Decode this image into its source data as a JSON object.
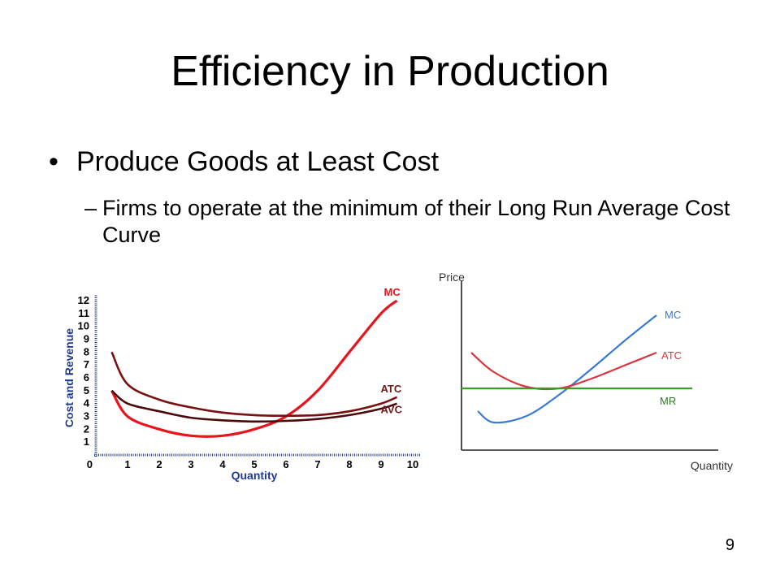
{
  "slide": {
    "title": "Efficiency in Production",
    "bullet": "Produce Goods at Least Cost",
    "bullet_marker": "•",
    "sub_dash": "–",
    "sub_bullet": "Firms to operate at the minimum of their Long Run Average Cost Curve",
    "slide_number": "9"
  },
  "chart_data": [
    {
      "type": "line",
      "title": "",
      "xlabel": "Quantity",
      "ylabel": "Cost and Revenue",
      "xlim": [
        0,
        10
      ],
      "ylim": [
        0,
        12
      ],
      "x_ticks": [
        "0",
        "1",
        "2",
        "3",
        "4",
        "5",
        "6",
        "7",
        "8",
        "9",
        "10"
      ],
      "y_ticks": [
        "1",
        "2",
        "3",
        "4",
        "5",
        "6",
        "7",
        "8",
        "9",
        "10",
        "11",
        "12"
      ],
      "series": [
        {
          "name": "MC",
          "color": "#e8141c",
          "x": [
            0.5,
            1,
            2,
            3,
            4,
            5,
            6,
            7,
            8,
            9,
            9.5
          ],
          "y": [
            5,
            3,
            2,
            1.5,
            1.5,
            2,
            3,
            5,
            8,
            11,
            12
          ]
        },
        {
          "name": "ATC",
          "color": "#7a1010",
          "x": [
            0.5,
            1,
            2,
            3,
            4,
            5,
            6,
            7,
            8,
            9,
            9.5
          ],
          "y": [
            8,
            5.5,
            4.3,
            3.7,
            3.3,
            3.1,
            3.05,
            3.1,
            3.4,
            4,
            4.5
          ]
        },
        {
          "name": "AVC",
          "color": "#4a0a0a",
          "x": [
            0.5,
            1,
            2,
            3,
            4,
            5,
            6,
            7,
            8,
            9,
            9.5
          ],
          "y": [
            5,
            4,
            3.4,
            2.9,
            2.7,
            2.6,
            2.65,
            2.8,
            3.1,
            3.6,
            4
          ]
        }
      ]
    },
    {
      "type": "line",
      "title": "",
      "xlabel": "Quantity",
      "ylabel": "Price",
      "series": [
        {
          "name": "MC",
          "color": "#3a7bd5",
          "x": [
            0.5,
            1,
            2,
            3,
            4,
            5,
            6
          ],
          "y": [
            2.4,
            1.7,
            2.1,
            3.4,
            5.0,
            6.7,
            8.3
          ]
        },
        {
          "name": "ATC",
          "color": "#d9363e",
          "x": [
            0.3,
            1,
            2,
            3,
            4,
            5,
            6
          ],
          "y": [
            6.0,
            4.8,
            3.9,
            3.8,
            4.4,
            5.2,
            6.0
          ]
        },
        {
          "name": "MR",
          "color": "#3a9a2a",
          "x": [
            0,
            7.1
          ],
          "y": [
            3.8,
            3.8
          ]
        }
      ]
    }
  ]
}
